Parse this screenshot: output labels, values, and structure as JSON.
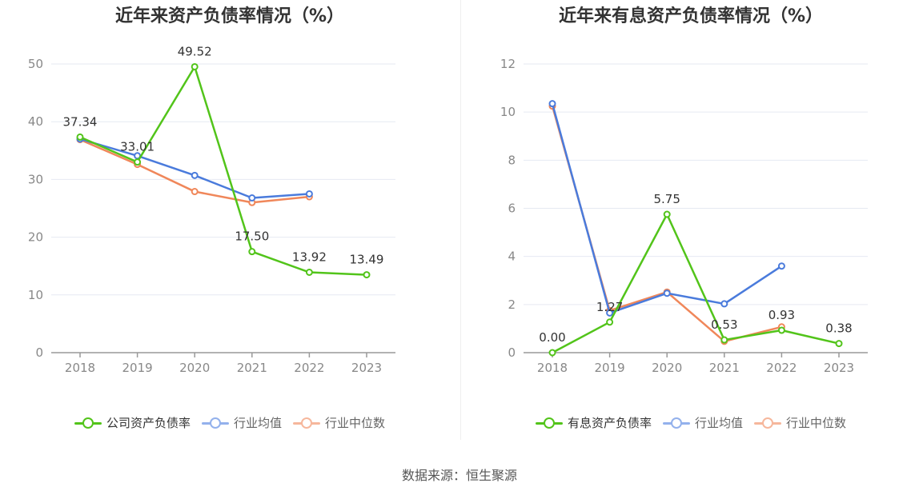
{
  "source_text": "数据来源：恒生聚源",
  "chart_data": [
    {
      "type": "line",
      "title": "近年来资产负债率情况（%）",
      "x": [
        "2018",
        "2019",
        "2020",
        "2021",
        "2022",
        "2023"
      ],
      "ylim": [
        0,
        50
      ],
      "yticks": [
        0,
        10,
        20,
        30,
        40,
        50
      ],
      "grid": true,
      "legend": "bottom",
      "series": [
        {
          "name": "公司资产负债率",
          "color": "#52c41a",
          "values": [
            37.34,
            33.01,
            49.52,
            17.5,
            13.92,
            13.49
          ],
          "labels": [
            "37.34",
            "33.01",
            "49.52",
            "17.50",
            "13.92",
            "13.49"
          ]
        },
        {
          "name": "行业均值",
          "color": "#4a7bdc",
          "values": [
            37.0,
            34.1,
            30.7,
            26.8,
            27.5,
            null
          ],
          "labels": []
        },
        {
          "name": "行业中位数",
          "color": "#f0875a",
          "values": [
            36.9,
            32.6,
            27.9,
            26.0,
            27.0,
            null
          ],
          "labels": []
        }
      ]
    },
    {
      "type": "line",
      "title": "近年来有息资产负债率情况（%）",
      "x": [
        "2018",
        "2019",
        "2020",
        "2021",
        "2022",
        "2023"
      ],
      "ylim": [
        0,
        12
      ],
      "yticks": [
        0,
        2,
        4,
        6,
        8,
        10,
        12
      ],
      "grid": true,
      "legend": "bottom",
      "series": [
        {
          "name": "有息资产负债率",
          "color": "#52c41a",
          "values": [
            0.0,
            1.27,
            5.75,
            0.53,
            0.93,
            0.38
          ],
          "labels": [
            "0.00",
            "1.27",
            "5.75",
            "0.53",
            "0.93",
            "0.38"
          ]
        },
        {
          "name": "行业均值",
          "color": "#4a7bdc",
          "values": [
            10.35,
            1.65,
            2.47,
            2.03,
            3.6,
            null
          ],
          "labels": []
        },
        {
          "name": "行业中位数",
          "color": "#f0875a",
          "values": [
            10.25,
            1.75,
            2.52,
            0.47,
            1.07,
            null
          ],
          "labels": []
        }
      ]
    }
  ]
}
